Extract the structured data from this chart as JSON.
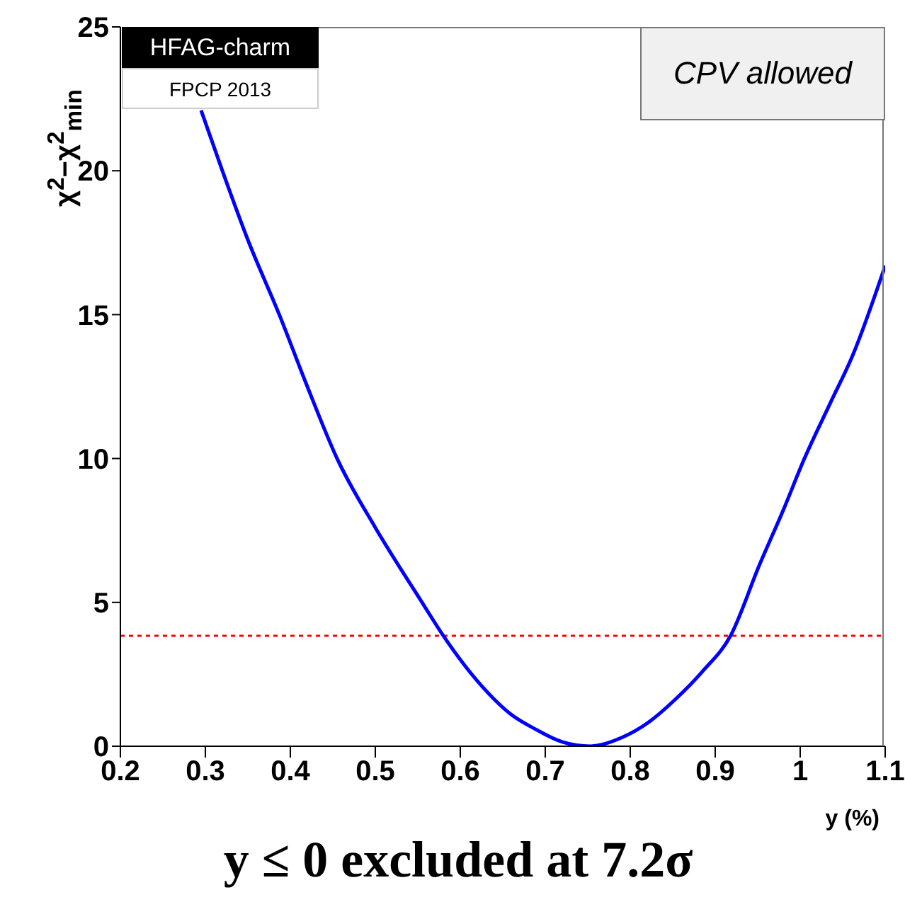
{
  "chart_data": {
    "type": "line",
    "xlabel": "y (%)",
    "ylabel": "χ$^{2}$−χ$^{2}$$_{min}$",
    "x": [
      0.295,
      0.32,
      0.35,
      0.387,
      0.42,
      0.455,
      0.5,
      0.555,
      0.58,
      0.625,
      0.66,
      0.688,
      0.72,
      0.753,
      0.76,
      0.79,
      0.82,
      0.852,
      0.885,
      0.918,
      0.952,
      0.98,
      1.005,
      1.035,
      1.062,
      1.1
    ],
    "series": [
      {
        "color": "#0000ff",
        "values": [
          22.1,
          20,
          17.6,
          15,
          12.5,
          10,
          7.6,
          5,
          3.84,
          2.1,
          1.1,
          0.6,
          0.15,
          0,
          0.02,
          0.3,
          0.8,
          1.6,
          2.6,
          3.84,
          6.3,
          8.2,
          10,
          11.9,
          13.6,
          16.7
        ]
      }
    ],
    "xlim": [
      0.2,
      1.1
    ],
    "xticks": [
      0.2,
      0.3,
      0.4,
      0.5,
      0.6,
      0.7,
      0.8,
      0.9,
      {
        "value": 1,
        "label": "1"
      },
      1.1
    ],
    "ylim": [
      0,
      25
    ],
    "yticks": [
      0,
      5,
      10,
      15,
      20,
      25
    ],
    "ref_lines": [
      {
        "axis": "y",
        "value": 3.84,
        "color": "#ff0000",
        "line_style": "dotted"
      }
    ],
    "annotations": [
      "HFAG-charm",
      "FPCP 2013",
      "CPV allowed",
      "y ≤ 0 excluded at 7.2σ"
    ],
    "grid": false,
    "legend": false,
    "marker": "none",
    "line_style": "solid"
  }
}
